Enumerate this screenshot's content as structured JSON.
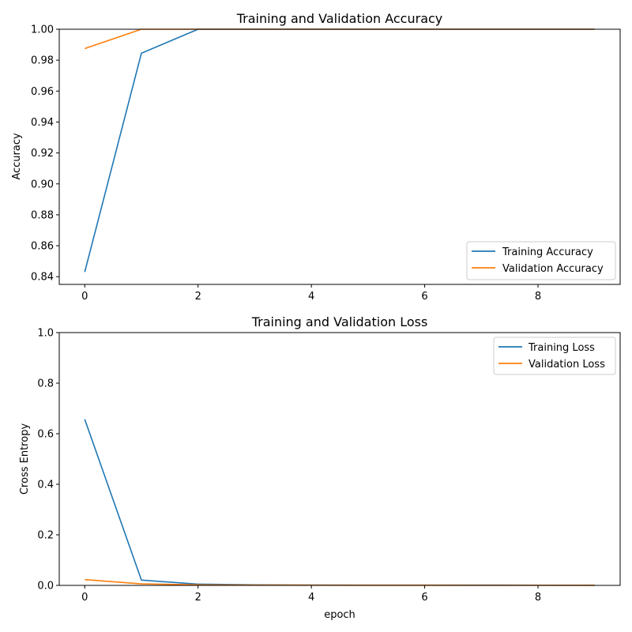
{
  "chart_data": [
    {
      "type": "line",
      "title": "Training and Validation Accuracy",
      "xlabel": "",
      "ylabel": "Accuracy",
      "xlim": [
        -0.45,
        9.45
      ],
      "ylim": [
        0.835,
        1.0
      ],
      "x_ticks": [
        0,
        2,
        4,
        6,
        8
      ],
      "x_tick_labels": [
        "0",
        "2",
        "4",
        "6",
        "8"
      ],
      "y_ticks": [
        0.84,
        0.86,
        0.88,
        0.9,
        0.92,
        0.94,
        0.96,
        0.98,
        1.0
      ],
      "y_tick_labels": [
        "0.84",
        "0.86",
        "0.88",
        "0.90",
        "0.92",
        "0.94",
        "0.96",
        "0.98",
        "1.00"
      ],
      "grid": false,
      "legend_position": "lower-right",
      "x": [
        0,
        1,
        2,
        3,
        4,
        5,
        6,
        7,
        8,
        9
      ],
      "series": [
        {
          "name": "Training Accuracy",
          "color": "#1f77b4",
          "values": [
            0.843,
            0.9845,
            1.0,
            1.0,
            1.0,
            1.0,
            1.0,
            1.0,
            1.0,
            1.0
          ]
        },
        {
          "name": "Validation Accuracy",
          "color": "#ff7f0e",
          "values": [
            0.9875,
            1.0,
            1.0,
            1.0,
            1.0,
            1.0,
            1.0,
            1.0,
            1.0,
            1.0
          ]
        }
      ]
    },
    {
      "type": "line",
      "title": "Training and Validation Loss",
      "xlabel": "epoch",
      "ylabel": "Cross Entropy",
      "xlim": [
        -0.45,
        9.45
      ],
      "ylim": [
        0.0,
        1.0
      ],
      "x_ticks": [
        0,
        2,
        4,
        6,
        8
      ],
      "x_tick_labels": [
        "0",
        "2",
        "4",
        "6",
        "8"
      ],
      "y_ticks": [
        0.0,
        0.2,
        0.4,
        0.6,
        0.8,
        1.0
      ],
      "y_tick_labels": [
        "0.0",
        "0.2",
        "0.4",
        "0.6",
        "0.8",
        "1.0"
      ],
      "grid": false,
      "legend_position": "upper-right",
      "x": [
        0,
        1,
        2,
        3,
        4,
        5,
        6,
        7,
        8,
        9
      ],
      "series": [
        {
          "name": "Training Loss",
          "color": "#1f77b4",
          "values": [
            0.657,
            0.021,
            0.005,
            0.002,
            0.0015,
            0.001,
            0.001,
            0.001,
            0.0008,
            0.0008
          ]
        },
        {
          "name": "Validation Loss",
          "color": "#ff7f0e",
          "values": [
            0.023,
            0.006,
            0.002,
            0.001,
            0.0008,
            0.0006,
            0.0005,
            0.0004,
            0.0004,
            0.0003
          ]
        }
      ]
    }
  ]
}
